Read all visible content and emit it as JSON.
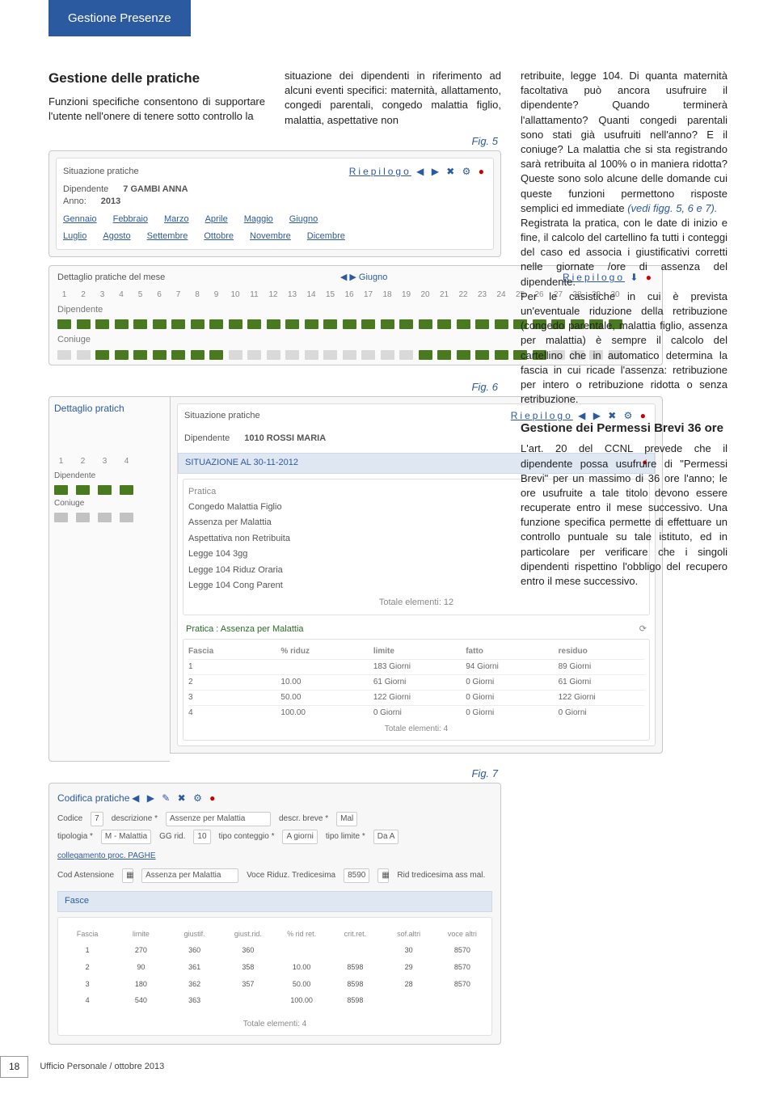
{
  "header": {
    "tab": "Gestione Presenze"
  },
  "intro": {
    "title": "Gestione delle pratiche",
    "colA": "Funzioni specifiche consentono di supportare l'utente nell'onere di tenere sotto controllo la",
    "colB": "situazione dei dipendenti in riferimento ad alcuni eventi specifici: maternità, allattamento, congedi parentali, congedo malattia figlio, malattia, aspettative non"
  },
  "right": {
    "p1": "retribuite, legge 104. Di quanta maternità facoltativa può ancora usufruire il dipendente? Quando terminerà l'allattamento? Quanti congedi parentali sono stati già usufruiti nell'anno? E il coniuge? La malattia che si sta registrando sarà retribuita al 100% o in maniera ridotta? Queste sono solo alcune delle domande cui queste funzioni permettono risposte semplici ed immediate ",
    "ref": "(vedi figg. 5, 6 e 7).",
    "p2": "Registrata la pratica, con le date di inizio e fine, il calcolo del cartellino fa tutti i conteggi del caso ed associa i giustificativi corretti nelle giornate /ore di assenza del dipendente.",
    "p3": "Per le casistiche in cui è prevista un'eventuale riduzione della retribuzione (congedo parentale, malattia figlio, assenza per malattia) è sempre il calcolo del cartellino che in automatico determina la fascia in cui ricade l'assenza: retribuzione per intero o retribuzione ridotta o senza retribuzione.",
    "h2": "Gestione dei Permessi Brevi 36 ore",
    "p4": "L'art. 20 del CCNL prevede che il dipendente possa usufruire di \"Permessi Brevi\" per un massimo di 36 ore l'anno; le ore usufruite a tale titolo devono essere recuperate entro il mese successivo. Una funzione specifica permette di effettuare un controllo puntuale su tale istituto, ed in particolare per verificare che i singoli dipendenti rispettino l'obbligo del recupero entro il mese successivo."
  },
  "fig5": {
    "label": "Fig. 5",
    "panel": "Situazione pratiche",
    "riep": "Riepilogo",
    "dipL": "Dipendente",
    "dipV": "7 GAMBI ANNA",
    "annoL": "Anno:",
    "annoV": "2013",
    "months1": [
      "Gennaio",
      "Febbraio",
      "Marzo",
      "Aprile",
      "Maggio",
      "Giugno"
    ],
    "months2": [
      "Luglio",
      "Agosto",
      "Settembre",
      "Ottobre",
      "Novembre",
      "Dicembre"
    ],
    "dett": "Dettaglio pratiche del mese",
    "navMonth": "Giugno",
    "riep2": "Riepilogo",
    "rowA": "Dipendente",
    "rowB": "Coniuge",
    "days": [
      "1",
      "2",
      "3",
      "4",
      "5",
      "6",
      "7",
      "8",
      "9",
      "10",
      "11",
      "12",
      "13",
      "14",
      "15",
      "16",
      "17",
      "18",
      "19",
      "20",
      "21",
      "22",
      "23",
      "24",
      "25",
      "26",
      "27",
      "28",
      "29",
      "30"
    ],
    "dip_pattern": [
      "b-on",
      "b-on",
      "b-on",
      "b-on",
      "b-on",
      "b-on",
      "b-on",
      "b-on",
      "b-on",
      "b-on",
      "b-on",
      "b-on",
      "b-on",
      "b-on",
      "b-on",
      "b-on",
      "b-on",
      "b-on",
      "b-on",
      "b-on",
      "b-on",
      "b-on",
      "b-on",
      "b-on",
      "b-on",
      "b-on",
      "b-on",
      "b-on",
      "b-on",
      "b-on"
    ],
    "con_pattern": [
      "b-off",
      "b-off",
      "b-on",
      "b-on",
      "b-on",
      "b-on",
      "b-on",
      "b-on",
      "b-on",
      "b-off",
      "b-off",
      "b-off",
      "b-off",
      "b-off",
      "b-off",
      "b-off",
      "b-off",
      "b-off",
      "b-off",
      "b-on",
      "b-on",
      "b-on",
      "b-on",
      "b-on",
      "b-on",
      "b-on",
      "b-off",
      "b-off",
      "b-off",
      "b-off"
    ]
  },
  "fig6": {
    "label": "Fig. 6",
    "panel": "Situazione pratiche",
    "riep": "Riepilogo",
    "dipL": "Dipendente",
    "dipV": "1010 ROSSI MARIA",
    "situaz": "SITUAZIONE AL 30-11-2012",
    "list": [
      "Pratica",
      "Congedo Malattia Figlio",
      "Assenza per Malattia",
      "Aspettativa non Retribuita",
      "Legge 104 3gg",
      "Legge 104 Riduz Oraria",
      "Legge 104 Cong Parent"
    ],
    "tot12": "Totale elementi: 12",
    "sottotitolo": "Pratica : Assenza per Malattia",
    "cols": [
      "Fascia",
      "% riduz",
      "limite",
      "fatto",
      "residuo"
    ],
    "rows": [
      [
        "1",
        "",
        "183 Giorni",
        "94 Giorni",
        "89 Giorni"
      ],
      [
        "2",
        "10.00",
        "61 Giorni",
        "0 Giorni",
        "61 Giorni"
      ],
      [
        "3",
        "50.00",
        "122 Giorni",
        "0 Giorni",
        "122 Giorni"
      ],
      [
        "4",
        "100.00",
        "0 Giorni",
        "0 Giorni",
        "0 Giorni"
      ]
    ],
    "tot4": "Totale elementi: 4",
    "dettL": "Dettaglio pratich",
    "days4": [
      "1",
      "2",
      "3",
      "4"
    ],
    "rowA": "Dipendente",
    "rowB": "Coniuge"
  },
  "fig7": {
    "label": "Fig. 7",
    "panel": "Codifica pratiche",
    "l_codice": "Codice",
    "v_codice": "7",
    "l_descr": "descrizione *",
    "v_descr": "Assenze per Malattia",
    "l_tip": "tipologia *",
    "v_tip": "M - Malattia",
    "l_gg": "GG rid.",
    "v_gg": "10",
    "l_tipcont": "tipo conteggio *",
    "v_tipcont": "A giorni",
    "l_descrb": "descr. breve *",
    "v_descrb": "Mal",
    "l_limite": "tipo limite *",
    "v_limite": "Da A",
    "linkproc": "collegamento proc. PAGHE",
    "l_cod2": "Cod Astensione",
    "v_cod2": "Assenza per Malattia",
    "l_voce": "Voce Riduz. Tredicesima",
    "v_voce": "8590",
    "l_rid": "Rid tredicesima ass mal.",
    "fasce": "Fasce",
    "hcols": [
      "Fascia",
      "limite",
      "giustif.",
      "giust.rid.",
      "% rid ret.",
      "crit.ret.",
      "sof.altri",
      "voce altri"
    ],
    "rows": [
      [
        "1",
        "270",
        "360",
        "360",
        "",
        "",
        "30",
        "8570"
      ],
      [
        "2",
        "90",
        "361",
        "358",
        "10.00",
        "8598",
        "29",
        "8570"
      ],
      [
        "3",
        "180",
        "362",
        "357",
        "50.00",
        "8598",
        "28",
        "8570"
      ],
      [
        "4",
        "540",
        "363",
        "",
        "100.00",
        "8598",
        "",
        ""
      ]
    ],
    "tot": "Totale elementi: 4"
  },
  "footer": {
    "page": "18",
    "text": "Ufficio Personale / ottobre 2013"
  }
}
